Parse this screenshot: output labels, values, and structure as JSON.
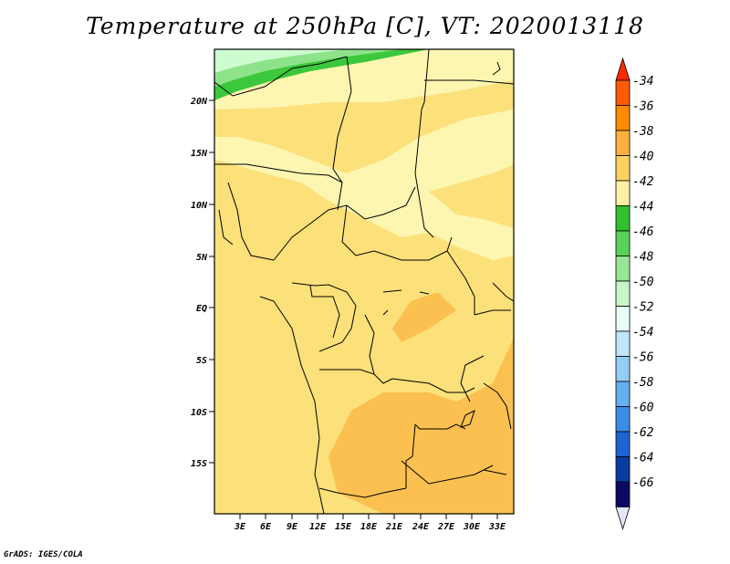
{
  "title": "Temperature at 250hPa [C], VT: 2020013118",
  "credit": "GrADS: IGES/COLA",
  "map": {
    "lat_labels": [
      "20N",
      "15N",
      "10N",
      "5N",
      "EQ",
      "5S",
      "10S",
      "15S"
    ],
    "lon_labels": [
      "3E",
      "6E",
      "9E",
      "12E",
      "15E",
      "18E",
      "21E",
      "24E",
      "27E",
      "30E",
      "33E"
    ],
    "lat_range": [
      -20,
      25
    ],
    "lon_range": [
      0,
      35
    ],
    "fields": [
      {
        "name": "band-minus-50",
        "color": "#cdfcd0"
      },
      {
        "name": "band-minus-48",
        "color": "#8ee38a"
      },
      {
        "name": "band-minus-44",
        "color": "#3cc83c"
      },
      {
        "name": "band-minus-42",
        "color": "#fdf6b1"
      },
      {
        "name": "band-minus-40",
        "color": "#fce07a"
      },
      {
        "name": "band-minus-38",
        "color": "#fbc050"
      }
    ]
  },
  "colorbar": {
    "labels": [
      "-34",
      "-36",
      "-38",
      "-40",
      "-42",
      "-44",
      "-46",
      "-48",
      "-50",
      "-52",
      "-54",
      "-56",
      "-58",
      "-60",
      "-62",
      "-64",
      "-66"
    ],
    "colors": [
      "#ff5a0a",
      "#ff8c00",
      "#fbb13c",
      "#fbd161",
      "#fdf0a4",
      "#30c030",
      "#5ad25a",
      "#96e696",
      "#c8f5c8",
      "#eafdf8",
      "#c0e6fa",
      "#96cdf5",
      "#64aff0",
      "#3c8ce6",
      "#1e64d2",
      "#0a3ca0",
      "#0a0a64"
    ],
    "top_cap_color": "#ff2a00",
    "bottom_cap_color": "#e6e6f8"
  }
}
